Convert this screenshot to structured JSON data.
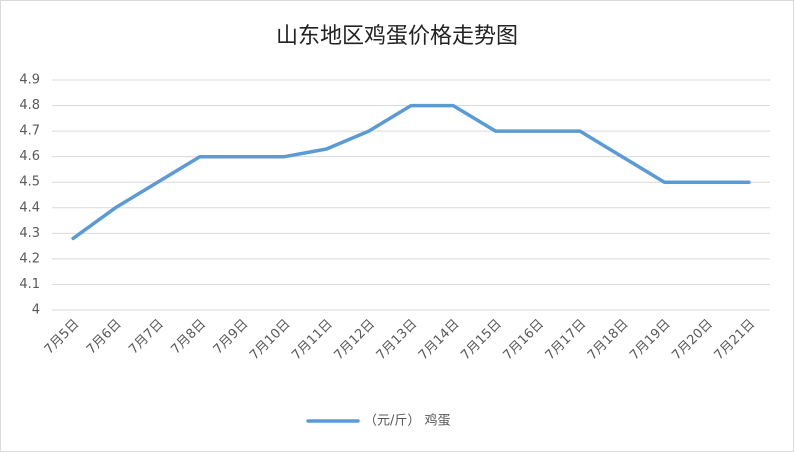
{
  "chart_data": {
    "type": "line",
    "title": "山东地区鸡蛋价格走势图",
    "categories": [
      "7月5日",
      "7月6日",
      "7月7日",
      "7月8日",
      "7月9日",
      "7月10日",
      "7月11日",
      "7月12日",
      "7月13日",
      "7月14日",
      "7月15日",
      "7月16日",
      "7月17日",
      "7月18日",
      "7月19日",
      "7月20日",
      "7月21日"
    ],
    "series": [
      {
        "name": "（元/斤） 鸡蛋",
        "color": "#5b9bd5",
        "values": [
          4.28,
          4.4,
          4.5,
          4.6,
          4.6,
          4.6,
          4.63,
          4.7,
          4.8,
          4.8,
          4.7,
          4.7,
          4.7,
          4.6,
          4.5,
          4.5,
          4.5
        ]
      }
    ],
    "ylim": [
      4,
      4.9
    ],
    "yticks": [
      4,
      4.1,
      4.2,
      4.3,
      4.4,
      4.5,
      4.6,
      4.7,
      4.8,
      4.9
    ],
    "grid": true,
    "legend": "bottom"
  }
}
